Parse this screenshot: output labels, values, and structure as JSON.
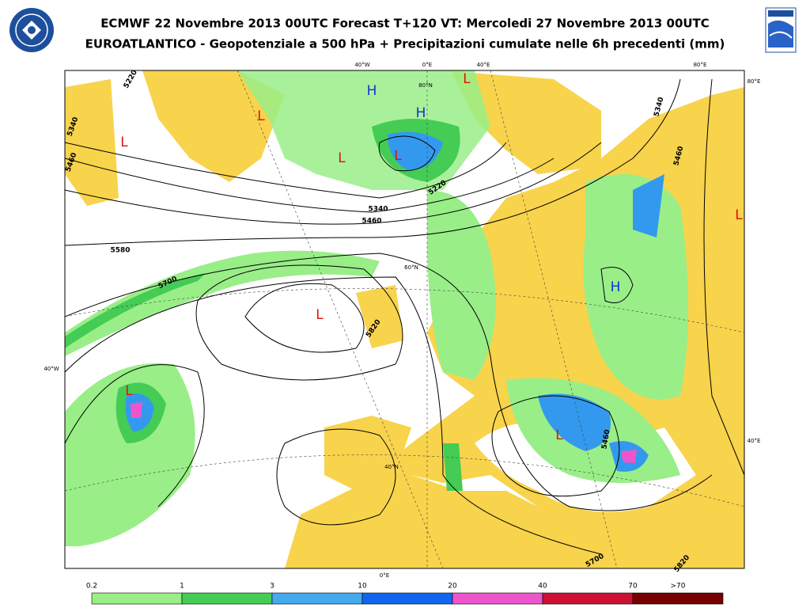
{
  "header": {
    "title_line1": "ECMWF 22 Novembre 2013 00UTC Forecast T+120 VT: Mercoledi 27 Novembre 2013 00UTC",
    "title_line2": "EUROATLANTICO - Geopotenziale a 500 hPa + Precipitazioni cumulate nelle 6h precedenti (mm)"
  },
  "map": {
    "pressure_centers": [
      "L",
      "L",
      "H",
      "H",
      "L",
      "L",
      "L",
      "L",
      "H",
      "L",
      "L",
      "L"
    ],
    "contour_labels": [
      "5220",
      "5340",
      "5460",
      "5220",
      "5340",
      "5460",
      "5580",
      "5700",
      "5820",
      "5340",
      "5460",
      "5460",
      "5700",
      "5820"
    ],
    "graticule_labels": [
      "40°W",
      "0°E",
      "40°E",
      "80°E",
      "80°E",
      "80°N",
      "60°N",
      "40°W",
      "40°N",
      "40°E",
      "0°E"
    ]
  },
  "legend": {
    "labels": [
      "0.2",
      "1",
      "3",
      "10",
      "20",
      "40",
      "70",
      ">70"
    ]
  }
}
